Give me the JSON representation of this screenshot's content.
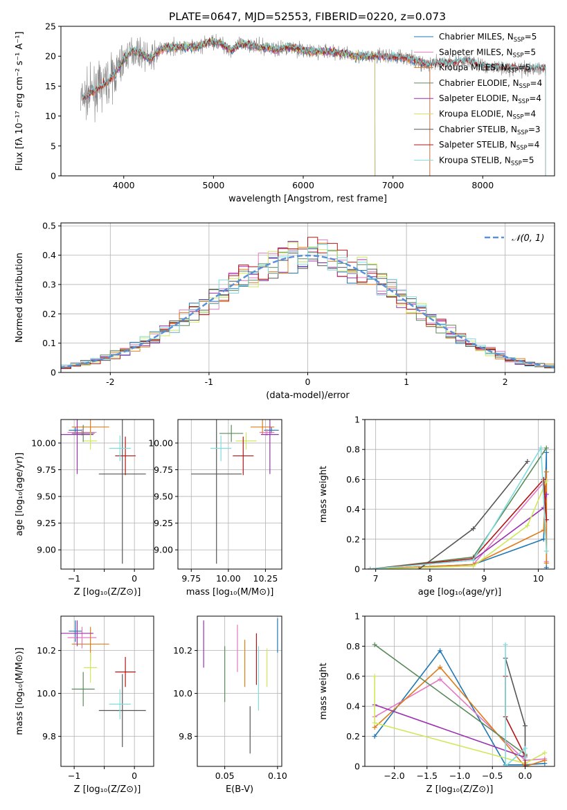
{
  "figure_title": "PLATE=0647, MJD=52553, FIBERID=0220, z=0.073",
  "colors": {
    "Chabrier MILES": "#1f77b4",
    "Salpeter MILES": "#e377c2",
    "Kroupa MILES": "#e07b1a",
    "Chabrier ELODIE": "#5a8a5a",
    "Salpeter ELODIE": "#9a2fb0",
    "Kroupa ELODIE": "#cfe85a",
    "Chabrier STELIB": "#555555",
    "Salpeter STELIB": "#b01515",
    "Kroupa STELIB": "#7fdbdc",
    "grid": "#b0b0b0",
    "gaussian": "#5b8fd6",
    "spectrum_grey": "#808080"
  },
  "chart_data": [
    {
      "id": "spectrum",
      "type": "line",
      "title": "PLATE=0647, MJD=52553, FIBERID=0220, z=0.073",
      "xlabel": "wavelength [Angstrom, rest frame]",
      "ylabel": "Flux [fλ 10⁻¹⁷ erg cm⁻² s⁻¹ A⁻¹]",
      "xlim": [
        3300,
        8800
      ],
      "ylim": [
        0,
        25
      ],
      "xticks": [
        4000,
        5000,
        6000,
        7000,
        8000
      ],
      "yticks": [
        0,
        5,
        10,
        15,
        20,
        25
      ],
      "grid": false,
      "legend_position": "top-right",
      "legend": [
        {
          "label": "Chabrier MILES, N",
          "sub": "SSP",
          "suffix": "=5",
          "color_key": "Chabrier MILES"
        },
        {
          "label": "Salpeter MILES, N",
          "sub": "SSP",
          "suffix": "=5",
          "color_key": "Salpeter MILES"
        },
        {
          "label": "Kroupa MILES, N",
          "sub": "SSP",
          "suffix": "=5",
          "color_key": "Kroupa MILES"
        },
        {
          "label": "Chabrier ELODIE, N",
          "sub": "SSP",
          "suffix": "=4",
          "color_key": "Chabrier ELODIE"
        },
        {
          "label": "Salpeter ELODIE, N",
          "sub": "SSP",
          "suffix": "=4",
          "color_key": "Salpeter ELODIE"
        },
        {
          "label": "Kroupa ELODIE, N",
          "sub": "SSP",
          "suffix": "=4",
          "color_key": "Kroupa ELODIE"
        },
        {
          "label": "Chabrier STELIB, N",
          "sub": "SSP",
          "suffix": "=3",
          "color_key": "Chabrier STELIB"
        },
        {
          "label": "Salpeter STELIB, N",
          "sub": "SSP",
          "suffix": "=4",
          "color_key": "Salpeter STELIB"
        },
        {
          "label": "Kroupa STELIB, N",
          "sub": "SSP",
          "suffix": "=5",
          "color_key": "Kroupa STELIB"
        }
      ],
      "continuum": [
        [
          3500,
          12.5
        ],
        [
          3600,
          13.5
        ],
        [
          3700,
          14.5
        ],
        [
          3800,
          15.5
        ],
        [
          3900,
          17.0
        ],
        [
          4000,
          19.5
        ],
        [
          4100,
          21.0
        ],
        [
          4200,
          20.5
        ],
        [
          4300,
          19.5
        ],
        [
          4400,
          21.0
        ],
        [
          4500,
          21.5
        ],
        [
          4600,
          21.5
        ],
        [
          4700,
          21.5
        ],
        [
          4800,
          21.5
        ],
        [
          4900,
          22.0
        ],
        [
          5000,
          22.5
        ],
        [
          5100,
          22.0
        ],
        [
          5200,
          21.0
        ],
        [
          5300,
          22.0
        ],
        [
          5400,
          22.0
        ],
        [
          5500,
          21.5
        ],
        [
          5600,
          21.5
        ],
        [
          5700,
          21.0
        ],
        [
          5800,
          21.5
        ],
        [
          5900,
          21.5
        ],
        [
          6000,
          21.0
        ],
        [
          6100,
          20.8
        ],
        [
          6200,
          20.8
        ],
        [
          6300,
          20.8
        ],
        [
          6400,
          20.5
        ],
        [
          6500,
          20.3
        ],
        [
          6600,
          20.0
        ],
        [
          6700,
          20.0
        ],
        [
          6800,
          20.0
        ],
        [
          6900,
          20.0
        ],
        [
          7000,
          19.9
        ],
        [
          7100,
          19.9
        ],
        [
          7200,
          19.5
        ],
        [
          7300,
          19.0
        ],
        [
          7400,
          18.5
        ],
        [
          7500,
          18.8
        ],
        [
          7600,
          18.9
        ],
        [
          7700,
          19.0
        ],
        [
          7800,
          19.2
        ],
        [
          7900,
          19.0
        ],
        [
          8000,
          18.3
        ],
        [
          8100,
          18.2
        ],
        [
          8200,
          18.1
        ],
        [
          8300,
          18.0
        ],
        [
          8400,
          18.0
        ],
        [
          8500,
          18.0
        ],
        [
          8600,
          18.0
        ],
        [
          8700,
          18.0
        ]
      ],
      "model_ranges": {
        "Chabrier MILES": [
          3540,
          7410
        ],
        "Salpeter MILES": [
          3540,
          7410
        ],
        "Kroupa MILES": [
          3540,
          7410
        ],
        "Chabrier ELODIE": [
          3900,
          6800
        ],
        "Salpeter ELODIE": [
          3900,
          6800
        ],
        "Kroupa ELODIE": [
          3900,
          6800
        ],
        "Chabrier STELIB": [
          3540,
          8700
        ],
        "Salpeter STELIB": [
          3540,
          8700
        ],
        "Kroupa STELIB": [
          3540,
          8700
        ]
      }
    },
    {
      "id": "residuals",
      "type": "histogram",
      "xlabel": "(data-model)/error",
      "ylabel": "Normed distribution",
      "xlim": [
        -2.5,
        2.5
      ],
      "ylim": [
        0,
        0.51
      ],
      "xticks": [
        -2,
        -1,
        0,
        1,
        2
      ],
      "yticks": [
        0.0,
        0.1,
        0.2,
        0.3,
        0.4,
        0.5
      ],
      "grid": true,
      "legend_position": "top-right",
      "legend": [
        {
          "label": "𝒩(0, 1)",
          "style": "dashed"
        }
      ],
      "bin_width": 0.1
    },
    {
      "id": "age_vs_Z",
      "type": "errorbar",
      "xlabel": "Z [log₁₀(Z/Z⊙)]",
      "ylabel": "age  [log₁₀(age/yr)]",
      "xlim": [
        -1.22,
        0.32
      ],
      "ylim": [
        8.82,
        10.22
      ],
      "xticks": [
        -1,
        -0.5,
        0
      ],
      "xticklabels": [
        "−1",
        "",
        "0"
      ],
      "yticks": [
        9.0,
        9.25,
        9.5,
        9.75,
        10.0
      ],
      "yticklabels": [
        "9.00",
        "9.25",
        "9.50",
        "9.75",
        "10.00"
      ],
      "grid": true,
      "points": [
        {
          "model": "Chabrier MILES",
          "x": -0.98,
          "y": 10.12,
          "xerr": 0.11,
          "yerr": 0.03
        },
        {
          "model": "Salpeter MILES",
          "x": -0.87,
          "y": 10.1,
          "xerr": 0.24,
          "yerr": 0.03
        },
        {
          "model": "Kroupa MILES",
          "x": -0.73,
          "y": 10.15,
          "xerr": 0.31,
          "yerr": 0.07
        },
        {
          "model": "Chabrier ELODIE",
          "x": -0.85,
          "y": 10.09,
          "xerr": 0.19,
          "yerr": 0.08
        },
        {
          "model": "Salpeter ELODIE",
          "x": -0.95,
          "y": 10.08,
          "xerr": 0.27,
          "yerr": 0.37
        },
        {
          "model": "Kroupa ELODIE",
          "x": -0.73,
          "y": 10.02,
          "xerr": 0.11,
          "yerr": 0.08
        },
        {
          "model": "Chabrier STELIB",
          "x": -0.2,
          "y": 9.71,
          "xerr": 0.39,
          "yerr": 0.84
        },
        {
          "model": "Salpeter STELIB",
          "x": -0.15,
          "y": 9.88,
          "xerr": 0.17,
          "yerr": 0.18
        },
        {
          "model": "Kroupa STELIB",
          "x": -0.24,
          "y": 9.95,
          "xerr": 0.18,
          "yerr": 0.12
        }
      ]
    },
    {
      "id": "age_vs_mass",
      "type": "errorbar",
      "xlabel": "mass [log₁₀(M/M⊙)]",
      "ylabel": "",
      "xlim": [
        9.66,
        10.36
      ],
      "ylim": [
        8.82,
        10.22
      ],
      "xticks": [
        9.75,
        10.0,
        10.25
      ],
      "xticklabels": [
        "9.75",
        "10.00",
        "10.25"
      ],
      "yticks": [
        9.0,
        9.25,
        9.5,
        9.75,
        10.0
      ],
      "yticklabels": [
        "9.00",
        "9.25",
        "9.50",
        "9.75",
        "10.00"
      ],
      "grid": true,
      "points": [
        {
          "model": "Chabrier MILES",
          "x": 10.29,
          "y": 10.12,
          "xerr": 0.05,
          "yerr": 0.03
        },
        {
          "model": "Salpeter MILES",
          "x": 10.26,
          "y": 10.1,
          "xerr": 0.05,
          "yerr": 0.03
        },
        {
          "model": "Kroupa MILES",
          "x": 10.23,
          "y": 10.15,
          "xerr": 0.08,
          "yerr": 0.07
        },
        {
          "model": "Chabrier ELODIE",
          "x": 10.02,
          "y": 10.09,
          "xerr": 0.08,
          "yerr": 0.08
        },
        {
          "model": "Salpeter ELODIE",
          "x": 10.28,
          "y": 10.08,
          "xerr": 0.06,
          "yerr": 0.37
        },
        {
          "model": "Kroupa ELODIE",
          "x": 10.12,
          "y": 10.02,
          "xerr": 0.07,
          "yerr": 0.08
        },
        {
          "model": "Chabrier STELIB",
          "x": 9.92,
          "y": 9.71,
          "xerr": 0.17,
          "yerr": 0.84
        },
        {
          "model": "Salpeter STELIB",
          "x": 10.1,
          "y": 9.88,
          "xerr": 0.07,
          "yerr": 0.18
        },
        {
          "model": "Kroupa STELIB",
          "x": 9.95,
          "y": 9.95,
          "xerr": 0.07,
          "yerr": 0.12
        }
      ]
    },
    {
      "id": "mass_weight_vs_age",
      "type": "line",
      "xlabel": "age  [log₁₀(age/yr)]",
      "ylabel": "mass weight",
      "xlim": [
        6.8,
        10.3
      ],
      "ylim": [
        0,
        1.0
      ],
      "xticks": [
        7,
        8,
        9,
        10
      ],
      "yticks": [
        0.0,
        0.2,
        0.4,
        0.6,
        0.8,
        1.0
      ],
      "grid": true,
      "series": [
        {
          "model": "Chabrier MILES",
          "x": [
            6.9,
            8.8,
            10.1,
            10.15,
            10.15
          ],
          "y": [
            0.0,
            0.03,
            0.2,
            0.78,
            0.01
          ]
        },
        {
          "model": "Salpeter MILES",
          "x": [
            6.9,
            8.8,
            10.1,
            10.15,
            10.15
          ],
          "y": [
            0.0,
            0.03,
            0.58,
            0.33,
            0.05
          ]
        },
        {
          "model": "Kroupa MILES",
          "x": [
            6.9,
            8.8,
            10.1,
            10.15,
            10.15
          ],
          "y": [
            0.0,
            0.03,
            0.26,
            0.65,
            0.04
          ]
        },
        {
          "model": "Chabrier ELODIE",
          "x": [
            6.9,
            8.8,
            10.15
          ],
          "y": [
            0.0,
            0.08,
            0.81
          ]
        },
        {
          "model": "Salpeter ELODIE",
          "x": [
            6.9,
            8.8,
            10.1,
            10.15
          ],
          "y": [
            0.0,
            0.06,
            0.41,
            0.5
          ]
        },
        {
          "model": "Kroupa ELODIE",
          "x": [
            6.9,
            8.8,
            9.8,
            10.15
          ],
          "y": [
            0.0,
            0.02,
            0.29,
            0.59
          ]
        },
        {
          "model": "Chabrier STELIB",
          "x": [
            7.8,
            8.8,
            9.8
          ],
          "y": [
            0.0,
            0.27,
            0.72
          ]
        },
        {
          "model": "Salpeter STELIB",
          "x": [
            6.9,
            8.8,
            10.1,
            10.15
          ],
          "y": [
            0.0,
            0.07,
            0.6,
            0.33
          ]
        },
        {
          "model": "Kroupa STELIB",
          "x": [
            6.9,
            8.8,
            10.05,
            10.15
          ],
          "y": [
            0.0,
            0.06,
            0.81,
            0.12
          ]
        }
      ]
    },
    {
      "id": "mass_vs_Z",
      "type": "errorbar",
      "xlabel": "Z [log₁₀(Z/Z⊙)]",
      "ylabel": "mass [log₁₀(M/M⊙)]",
      "xlim": [
        -1.22,
        0.32
      ],
      "ylim": [
        9.66,
        10.36
      ],
      "xticks": [
        -1,
        -0.5,
        0
      ],
      "xticklabels": [
        "−1",
        "",
        "0"
      ],
      "yticks": [
        9.8,
        10.0,
        10.2
      ],
      "yticklabels": [
        "9.8",
        "10.0",
        "10.2"
      ],
      "grid": true,
      "points": [
        {
          "model": "Chabrier MILES",
          "x": -0.98,
          "y": 10.29,
          "xerr": 0.11,
          "yerr": 0.05
        },
        {
          "model": "Salpeter MILES",
          "x": -0.87,
          "y": 10.26,
          "xerr": 0.24,
          "yerr": 0.05
        },
        {
          "model": "Kroupa MILES",
          "x": -0.73,
          "y": 10.23,
          "xerr": 0.31,
          "yerr": 0.08
        },
        {
          "model": "Chabrier ELODIE",
          "x": -0.85,
          "y": 10.02,
          "xerr": 0.19,
          "yerr": 0.08
        },
        {
          "model": "Salpeter ELODIE",
          "x": -0.95,
          "y": 10.28,
          "xerr": 0.27,
          "yerr": 0.06
        },
        {
          "model": "Kroupa ELODIE",
          "x": -0.73,
          "y": 10.12,
          "xerr": 0.11,
          "yerr": 0.07
        },
        {
          "model": "Chabrier STELIB",
          "x": -0.2,
          "y": 9.92,
          "xerr": 0.39,
          "yerr": 0.17
        },
        {
          "model": "Salpeter STELIB",
          "x": -0.15,
          "y": 10.1,
          "xerr": 0.17,
          "yerr": 0.07
        },
        {
          "model": "Kroupa STELIB",
          "x": -0.24,
          "y": 9.95,
          "xerr": 0.18,
          "yerr": 0.07
        }
      ]
    },
    {
      "id": "mass_vs_EBV",
      "type": "errorbar",
      "xlabel": "E(B-V)",
      "ylabel": "",
      "xlim": [
        0.024,
        0.104
      ],
      "ylim": [
        9.66,
        10.36
      ],
      "xticks": [
        0.05,
        0.1
      ],
      "xticklabels": [
        "0.05",
        "0.10"
      ],
      "yticks": [
        9.8,
        10.0,
        10.2
      ],
      "yticklabels": [
        "9.8",
        "10.0",
        "10.2"
      ],
      "grid": true,
      "points": [
        {
          "model": "Chabrier MILES",
          "x": 0.1,
          "y": 10.27,
          "xerr": 0,
          "yerr": 0.08
        },
        {
          "model": "Salpeter MILES",
          "x": 0.062,
          "y": 10.21,
          "xerr": 0,
          "yerr": 0.11
        },
        {
          "model": "Kroupa MILES",
          "x": 0.069,
          "y": 10.14,
          "xerr": 0,
          "yerr": 0.11
        },
        {
          "model": "Chabrier ELODIE",
          "x": 0.05,
          "y": 10.09,
          "xerr": 0,
          "yerr": 0.13
        },
        {
          "model": "Salpeter ELODIE",
          "x": 0.03,
          "y": 10.23,
          "xerr": 0,
          "yerr": 0.11
        },
        {
          "model": "Kroupa ELODIE",
          "x": 0.09,
          "y": 10.12,
          "xerr": 0,
          "yerr": 0.09
        },
        {
          "model": "Chabrier STELIB",
          "x": 0.074,
          "y": 9.83,
          "xerr": 0,
          "yerr": 0.11
        },
        {
          "model": "Salpeter STELIB",
          "x": 0.08,
          "y": 10.16,
          "xerr": 0,
          "yerr": 0.12
        },
        {
          "model": "Kroupa STELIB",
          "x": 0.082,
          "y": 10.07,
          "xerr": 0,
          "yerr": 0.15
        }
      ]
    },
    {
      "id": "mass_weight_vs_Z",
      "type": "line",
      "xlabel": "Z [log₁₀(Z/Z⊙)]",
      "ylabel": "mass weight",
      "xlim": [
        -2.45,
        0.45
      ],
      "ylim": [
        0,
        1.0
      ],
      "xticks": [
        -2.0,
        -1.5,
        -1.0,
        -0.5,
        0.0
      ],
      "xticklabels": [
        "−2.0",
        "−1.5",
        "−1.0",
        "−0.5",
        "0.0"
      ],
      "yticks": [
        0.0,
        0.2,
        0.4,
        0.6,
        0.8,
        1.0
      ],
      "grid": true,
      "series": [
        {
          "model": "Chabrier MILES",
          "x": [
            -2.3,
            -1.3,
            -0.3,
            0.0,
            0.3
          ],
          "y": [
            0.2,
            0.77,
            0.01,
            0.01,
            0.02
          ]
        },
        {
          "model": "Salpeter MILES",
          "x": [
            -2.3,
            -1.3,
            0.0,
            0.3
          ],
          "y": [
            0.33,
            0.58,
            0.04,
            0.05
          ]
        },
        {
          "model": "Kroupa MILES",
          "x": [
            -2.3,
            -1.3,
            0.0,
            0.3
          ],
          "y": [
            0.26,
            0.66,
            0.0,
            0.04
          ]
        },
        {
          "model": "Chabrier ELODIE",
          "x": [
            -2.3,
            0.0
          ],
          "y": [
            0.81,
            0.08
          ]
        },
        {
          "model": "Salpeter ELODIE",
          "x": [
            -2.3,
            0.0
          ],
          "y": [
            0.41,
            0.06
          ]
        },
        {
          "model": "Kroupa ELODIE",
          "x": [
            -2.3,
            -2.3,
            0.0,
            0.3
          ],
          "y": [
            0.6,
            0.29,
            0.02,
            0.09
          ]
        },
        {
          "model": "Chabrier STELIB",
          "x": [
            -0.3,
            0.0,
            0.0
          ],
          "y": [
            0.72,
            0.27,
            0.0
          ]
        },
        {
          "model": "Salpeter STELIB",
          "x": [
            -0.3,
            -0.3,
            0.0,
            0.0
          ],
          "y": [
            0.6,
            0.33,
            0.07,
            0.0
          ]
        },
        {
          "model": "Kroupa STELIB",
          "x": [
            -0.3,
            -0.3,
            0.0,
            0.0
          ],
          "y": [
            0.81,
            0.0,
            0.12,
            0.06
          ]
        }
      ]
    }
  ]
}
